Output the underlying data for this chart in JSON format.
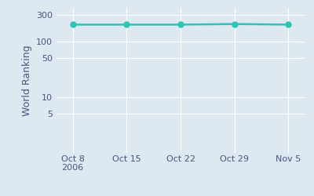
{
  "x_labels": [
    "Oct 8\n2006",
    "Oct 15",
    "Oct 22",
    "Oct 29",
    "Nov 5"
  ],
  "x_values": [
    0,
    1,
    2,
    3,
    4
  ],
  "y_values": [
    200,
    200,
    200,
    205,
    200
  ],
  "line_color": "#2ec4b6",
  "marker_color": "#2ec4b6",
  "ylabel": "World Ranking",
  "background_color": "#dde8f0",
  "plot_bg_color": "#dde8f0",
  "yticks": [
    5,
    10,
    50,
    100,
    300
  ],
  "ylim_log": [
    1,
    400
  ],
  "marker_size": 5,
  "line_width": 1.8,
  "tick_label_color": "#4a5580",
  "ylabel_color": "#4a5580",
  "tick_fontsize": 8,
  "ylabel_fontsize": 9
}
